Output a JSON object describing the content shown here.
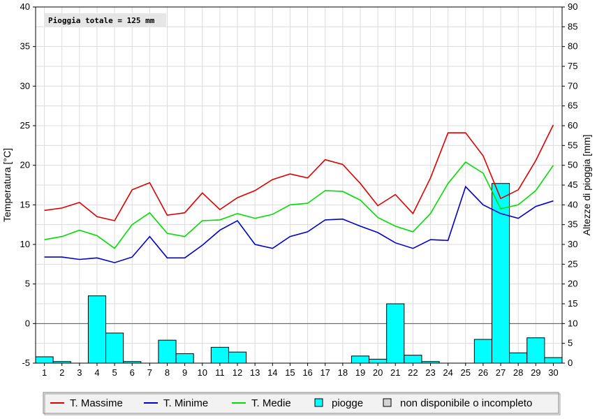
{
  "chart_data": {
    "type": "bar+line",
    "annotation": "Pioggia totale = 125 mm",
    "ylabel_left": "Temperatura [°C]",
    "ylabel_right": "Altezze di pioggia [mm]",
    "ylim_left": [
      -5,
      40
    ],
    "ylim_right": [
      0,
      90
    ],
    "yticks_left": [
      "40",
      "35",
      "30",
      "25",
      "20",
      "15",
      "10",
      "5",
      "0",
      "-5"
    ],
    "yticks_right": [
      "90",
      "85",
      "80",
      "75",
      "70",
      "65",
      "60",
      "55",
      "50",
      "45",
      "40",
      "35",
      "30",
      "25",
      "20",
      "15",
      "10",
      "5",
      "0"
    ],
    "categories": [
      "1",
      "2",
      "3",
      "4",
      "5",
      "6",
      "7",
      "8",
      "9",
      "10",
      "11",
      "12",
      "13",
      "14",
      "15",
      "16",
      "17",
      "18",
      "19",
      "20",
      "21",
      "22",
      "23",
      "24",
      "25",
      "26",
      "27",
      "28",
      "29",
      "30"
    ],
    "grid": true,
    "legend_position": "bottom",
    "series": [
      {
        "name": "T. Massime",
        "kind": "line",
        "axis": "left",
        "color": "#dd0000",
        "values": [
          14.3,
          14.6,
          15.3,
          13.5,
          13.0,
          16.9,
          17.8,
          13.7,
          14.0,
          16.5,
          14.4,
          15.9,
          16.8,
          18.2,
          18.9,
          18.4,
          20.7,
          20.1,
          17.7,
          14.9,
          16.3,
          13.9,
          18.4,
          24.1,
          24.1,
          21.2,
          15.8,
          16.9,
          20.6,
          25.1
        ]
      },
      {
        "name": "T. Minime",
        "kind": "line",
        "axis": "left",
        "color": "#0000cc",
        "values": [
          8.4,
          8.4,
          8.1,
          8.3,
          7.7,
          8.4,
          11.0,
          8.3,
          8.3,
          9.9,
          11.8,
          13.0,
          10.0,
          9.5,
          11.0,
          11.6,
          13.1,
          13.2,
          12.3,
          11.5,
          10.2,
          9.5,
          10.6,
          10.5,
          17.3,
          15.0,
          13.9,
          13.3,
          14.8,
          15.5
        ]
      },
      {
        "name": "T. Medie",
        "kind": "line",
        "axis": "left",
        "color": "#00dd00",
        "values": [
          10.6,
          11.0,
          11.8,
          11.1,
          9.5,
          12.5,
          14.0,
          11.4,
          11.0,
          13.0,
          13.1,
          13.9,
          13.3,
          13.8,
          15.0,
          15.2,
          16.8,
          16.7,
          15.6,
          13.4,
          12.3,
          11.6,
          13.9,
          17.7,
          20.4,
          19.0,
          14.5,
          15.0,
          16.8,
          20.0
        ]
      },
      {
        "name": "piogge",
        "kind": "bar",
        "axis": "right",
        "color": "#00ffff",
        "values": [
          1.6,
          0.4,
          0,
          17.0,
          7.6,
          0.4,
          0,
          5.8,
          2.4,
          0,
          4.0,
          2.8,
          0,
          0,
          0,
          0,
          0,
          0,
          1.8,
          1.0,
          15.0,
          2.0,
          0.4,
          0,
          0,
          6.0,
          45.4,
          2.6,
          6.4,
          1.4
        ]
      }
    ],
    "legend": [
      {
        "label": "T. Massime",
        "kind": "line",
        "color": "#dd0000"
      },
      {
        "label": "T. Minime",
        "kind": "line",
        "color": "#0000cc"
      },
      {
        "label": "T. Medie",
        "kind": "line",
        "color": "#00dd00"
      },
      {
        "label": "piogge",
        "kind": "box",
        "color": "#00ffff"
      },
      {
        "label": "non disponibile o incompleto",
        "kind": "box",
        "color": "#d4d4d4"
      }
    ]
  }
}
